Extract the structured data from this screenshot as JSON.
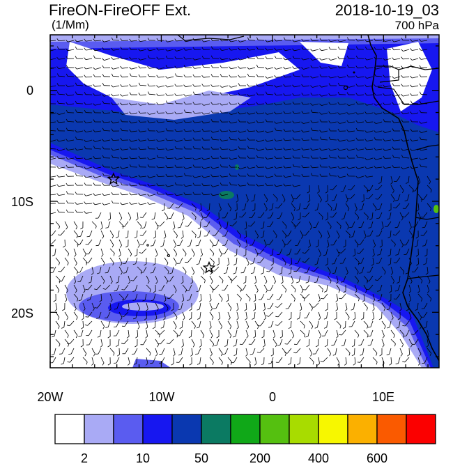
{
  "header": {
    "title": "FireON-FireOFF Ext.",
    "datetime": "2018-10-19_03",
    "units": "(1/Mm)",
    "level": "700 hPa"
  },
  "map": {
    "lat_labels": [
      "0",
      "10S",
      "20S"
    ],
    "lon_labels": [
      "20W",
      "10W",
      "0",
      "10E"
    ],
    "lat_range": [
      "5N",
      "25S"
    ],
    "lon_range": [
      "20W",
      "15E"
    ],
    "markers": [
      {
        "name": "star-marker-1",
        "lon": -14.3,
        "lat": -8.0
      },
      {
        "name": "star-marker-2",
        "lon": -5.7,
        "lat": -16.0
      }
    ]
  },
  "colorbar": {
    "labels": [
      "2",
      "10",
      "50",
      "200",
      "400",
      "600"
    ],
    "colors": [
      "#ffffff",
      "#a9aaf5",
      "#5a5cf0",
      "#1717f0",
      "#0a38b0",
      "#0b7a62",
      "#10a818",
      "#55c010",
      "#a8dc00",
      "#f7f700",
      "#fbb000",
      "#fa5a00",
      "#fb0000"
    ]
  },
  "colors": {
    "field_light": "#a9aaf5",
    "field_mid": "#5a5cf0",
    "field_strong": "#1717f0",
    "field_core": "#0a38b0",
    "field_green": "#0b7a62",
    "field_lime": "#55c010"
  }
}
